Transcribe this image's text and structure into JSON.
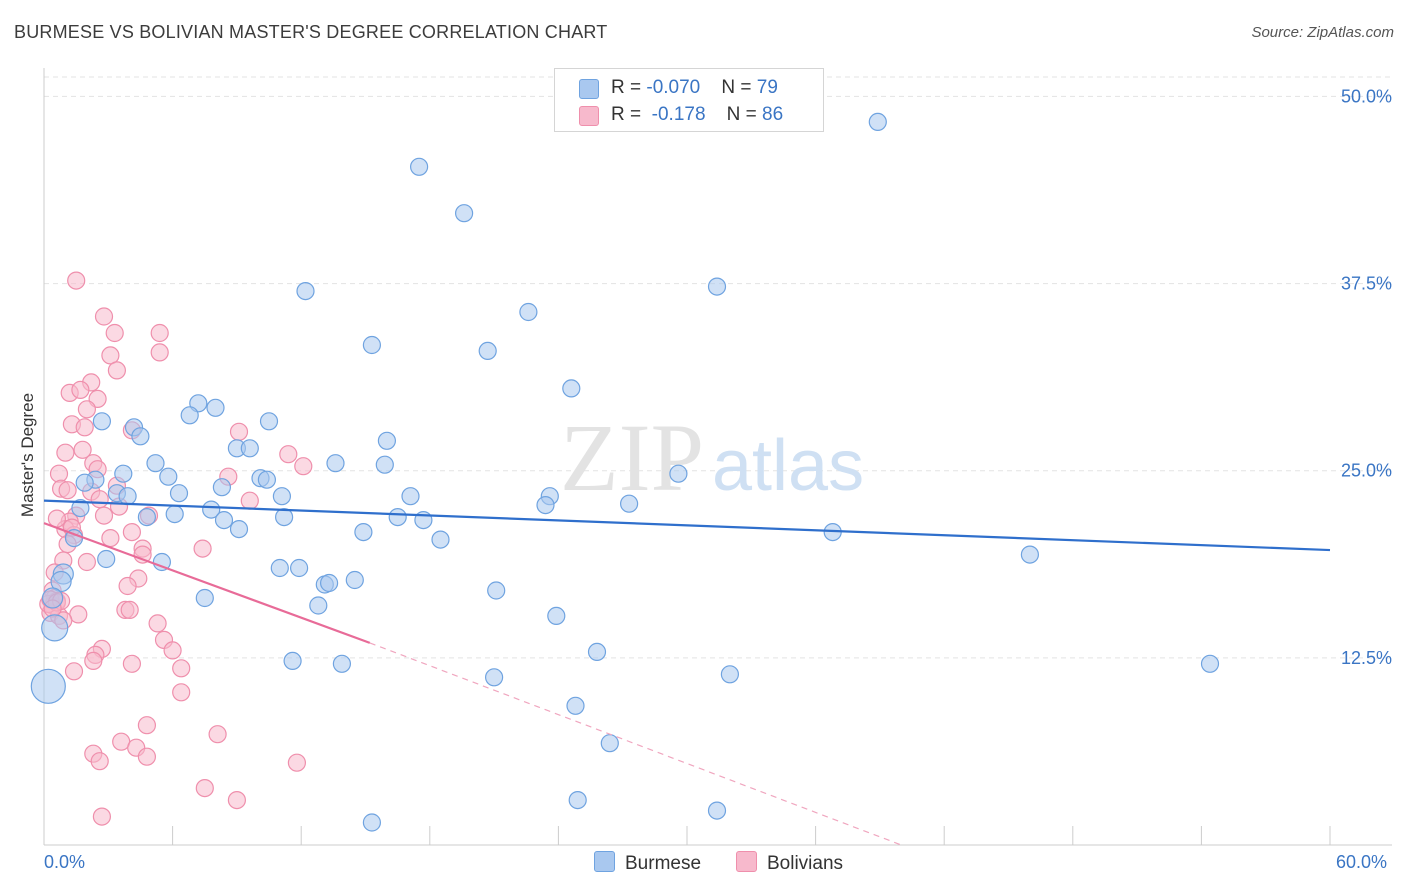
{
  "header": {
    "title": "BURMESE VS BOLIVIAN MASTER'S DEGREE CORRELATION CHART",
    "source": "Source: ZipAtlas.com"
  },
  "watermark": {
    "zip": "ZIP",
    "atlas": "atlas"
  },
  "legend": {
    "rows": [
      {
        "r_label": "R = ",
        "r_value": "-0.070",
        "n_label": "N = ",
        "n_value": "79",
        "color": "#a9c8ef"
      },
      {
        "r_label": "R = ",
        "r_value": "-0.178",
        "n_label": "N = ",
        "n_value": "86",
        "color": "#f7b9cc"
      }
    ]
  },
  "bottom_legend": [
    {
      "label": "Burmese",
      "color": "#a9c8ef"
    },
    {
      "label": "Bolivians",
      "color": "#f7b9cc"
    }
  ],
  "chart_data": {
    "type": "scatter",
    "title": "BURMESE VS BOLIVIAN MASTER'S DEGREE CORRELATION CHART",
    "ylabel": "Master's Degree",
    "xlabel": "",
    "xlim": [
      0,
      60
    ],
    "ylim": [
      0,
      52.5
    ],
    "x_tick_labels": [
      "0.0%",
      "60.0%"
    ],
    "y_ticks": [
      12.5,
      25.0,
      37.5,
      50.0
    ],
    "y_tick_labels": [
      "12.5%",
      "25.0%",
      "37.5%",
      "50.0%"
    ],
    "grid": true,
    "series": [
      {
        "name": "Burmese",
        "color": "#6fa3e0",
        "fill": "#a9c8ef",
        "trend": {
          "x1": 0,
          "y1": 23.0,
          "x2": 60,
          "y2": 19.7,
          "color": "#2f6fcc"
        },
        "points": [
          [
            38.9,
            48.3
          ],
          [
            17.5,
            45.3
          ],
          [
            19.6,
            42.2
          ],
          [
            12.2,
            37.0
          ],
          [
            31.4,
            37.3
          ],
          [
            22.6,
            35.6
          ],
          [
            15.3,
            33.4
          ],
          [
            20.7,
            33.0
          ],
          [
            24.6,
            30.5
          ],
          [
            7.2,
            29.5
          ],
          [
            8.0,
            29.2
          ],
          [
            6.8,
            28.7
          ],
          [
            2.7,
            28.3
          ],
          [
            4.2,
            27.9
          ],
          [
            10.5,
            28.3
          ],
          [
            16.0,
            27.0
          ],
          [
            4.5,
            27.3
          ],
          [
            9.0,
            26.5
          ],
          [
            9.6,
            26.5
          ],
          [
            5.2,
            25.5
          ],
          [
            13.6,
            25.5
          ],
          [
            15.9,
            25.4
          ],
          [
            3.7,
            24.8
          ],
          [
            2.4,
            24.4
          ],
          [
            5.8,
            24.6
          ],
          [
            29.6,
            24.8
          ],
          [
            10.1,
            24.5
          ],
          [
            10.4,
            24.4
          ],
          [
            1.9,
            24.2
          ],
          [
            3.4,
            23.5
          ],
          [
            8.3,
            23.9
          ],
          [
            3.9,
            23.3
          ],
          [
            6.3,
            23.5
          ],
          [
            11.1,
            23.3
          ],
          [
            17.1,
            23.3
          ],
          [
            23.6,
            23.3
          ],
          [
            23.4,
            22.7
          ],
          [
            1.7,
            22.5
          ],
          [
            27.3,
            22.8
          ],
          [
            7.8,
            22.4
          ],
          [
            6.1,
            22.1
          ],
          [
            8.4,
            21.7
          ],
          [
            11.2,
            21.9
          ],
          [
            16.5,
            21.9
          ],
          [
            17.7,
            21.7
          ],
          [
            4.8,
            21.9
          ],
          [
            9.1,
            21.1
          ],
          [
            14.9,
            20.9
          ],
          [
            36.8,
            20.9
          ],
          [
            1.4,
            20.5
          ],
          [
            18.5,
            20.4
          ],
          [
            46.0,
            19.4
          ],
          [
            2.9,
            19.1
          ],
          [
            5.5,
            18.9
          ],
          [
            11.0,
            18.5
          ],
          [
            11.9,
            18.5
          ],
          [
            0.9,
            18.1
          ],
          [
            0.8,
            17.6
          ],
          [
            14.5,
            17.7
          ],
          [
            13.1,
            17.4
          ],
          [
            13.3,
            17.5
          ],
          [
            21.1,
            17.0
          ],
          [
            7.5,
            16.5
          ],
          [
            12.8,
            16.0
          ],
          [
            23.9,
            15.3
          ],
          [
            0.5,
            14.5
          ],
          [
            25.8,
            12.9
          ],
          [
            11.6,
            12.3
          ],
          [
            13.9,
            12.1
          ],
          [
            54.4,
            12.1
          ],
          [
            32.0,
            11.4
          ],
          [
            21.0,
            11.2
          ],
          [
            0.2,
            10.6
          ],
          [
            24.8,
            9.3
          ],
          [
            26.4,
            6.8
          ],
          [
            24.9,
            3.0
          ],
          [
            31.4,
            2.3
          ],
          [
            15.3,
            1.5
          ],
          [
            0.4,
            16.5
          ]
        ],
        "sizes_note": "most points r=8; larger at low x"
      },
      {
        "name": "Bolivians",
        "color": "#ef8fac",
        "fill": "#f7b9cc",
        "trend": {
          "x1": 0,
          "y1": 21.5,
          "x2": 15.2,
          "y2": 13.5,
          "color": "#e86b98",
          "dash_to": {
            "x": 40.0,
            "y": 0.0
          }
        },
        "points": [
          [
            1.5,
            37.7
          ],
          [
            2.8,
            35.3
          ],
          [
            3.3,
            34.2
          ],
          [
            5.4,
            34.2
          ],
          [
            5.4,
            32.9
          ],
          [
            3.1,
            32.7
          ],
          [
            3.4,
            31.7
          ],
          [
            2.2,
            30.9
          ],
          [
            1.2,
            30.2
          ],
          [
            1.7,
            30.4
          ],
          [
            2.5,
            29.8
          ],
          [
            2.0,
            29.1
          ],
          [
            1.3,
            28.1
          ],
          [
            1.9,
            27.9
          ],
          [
            9.1,
            27.6
          ],
          [
            4.1,
            27.7
          ],
          [
            1.8,
            26.4
          ],
          [
            1.0,
            26.2
          ],
          [
            11.4,
            26.1
          ],
          [
            12.1,
            25.3
          ],
          [
            2.3,
            25.5
          ],
          [
            2.5,
            25.1
          ],
          [
            0.7,
            24.8
          ],
          [
            8.6,
            24.6
          ],
          [
            0.8,
            23.8
          ],
          [
            3.4,
            24.0
          ],
          [
            2.2,
            23.6
          ],
          [
            1.1,
            23.7
          ],
          [
            2.6,
            23.1
          ],
          [
            9.6,
            23.0
          ],
          [
            3.5,
            22.6
          ],
          [
            4.9,
            22.0
          ],
          [
            1.5,
            22.0
          ],
          [
            1.2,
            21.6
          ],
          [
            2.8,
            22.0
          ],
          [
            1.0,
            21.1
          ],
          [
            4.1,
            20.9
          ],
          [
            1.4,
            20.7
          ],
          [
            3.1,
            20.5
          ],
          [
            1.1,
            20.1
          ],
          [
            4.6,
            19.8
          ],
          [
            7.4,
            19.8
          ],
          [
            0.9,
            19.0
          ],
          [
            2.0,
            18.9
          ],
          [
            4.6,
            19.4
          ],
          [
            0.5,
            18.2
          ],
          [
            4.4,
            17.8
          ],
          [
            3.9,
            17.3
          ],
          [
            0.4,
            17.0
          ],
          [
            0.5,
            16.5
          ],
          [
            0.6,
            16.3
          ],
          [
            0.4,
            16.0
          ],
          [
            3.8,
            15.7
          ],
          [
            0.3,
            15.5
          ],
          [
            1.6,
            15.4
          ],
          [
            4.0,
            15.7
          ],
          [
            5.3,
            14.8
          ],
          [
            0.7,
            15.3
          ],
          [
            5.6,
            13.7
          ],
          [
            2.7,
            13.1
          ],
          [
            6.0,
            13.0
          ],
          [
            2.4,
            12.7
          ],
          [
            2.3,
            12.3
          ],
          [
            4.1,
            12.1
          ],
          [
            6.4,
            11.8
          ],
          [
            1.4,
            11.6
          ],
          [
            6.4,
            10.2
          ],
          [
            4.8,
            8.0
          ],
          [
            8.1,
            7.4
          ],
          [
            3.6,
            6.9
          ],
          [
            4.3,
            6.5
          ],
          [
            2.3,
            6.1
          ],
          [
            4.8,
            5.9
          ],
          [
            2.6,
            5.6
          ],
          [
            11.8,
            5.5
          ],
          [
            7.5,
            3.8
          ],
          [
            9.0,
            3.0
          ],
          [
            2.7,
            1.9
          ],
          [
            0.2,
            16.1
          ],
          [
            0.3,
            16.4
          ],
          [
            0.6,
            16.2
          ],
          [
            0.8,
            16.3
          ],
          [
            1.3,
            21.2
          ],
          [
            0.6,
            21.8
          ],
          [
            0.9,
            15.0
          ],
          [
            0.4,
            15.8
          ]
        ]
      }
    ]
  }
}
